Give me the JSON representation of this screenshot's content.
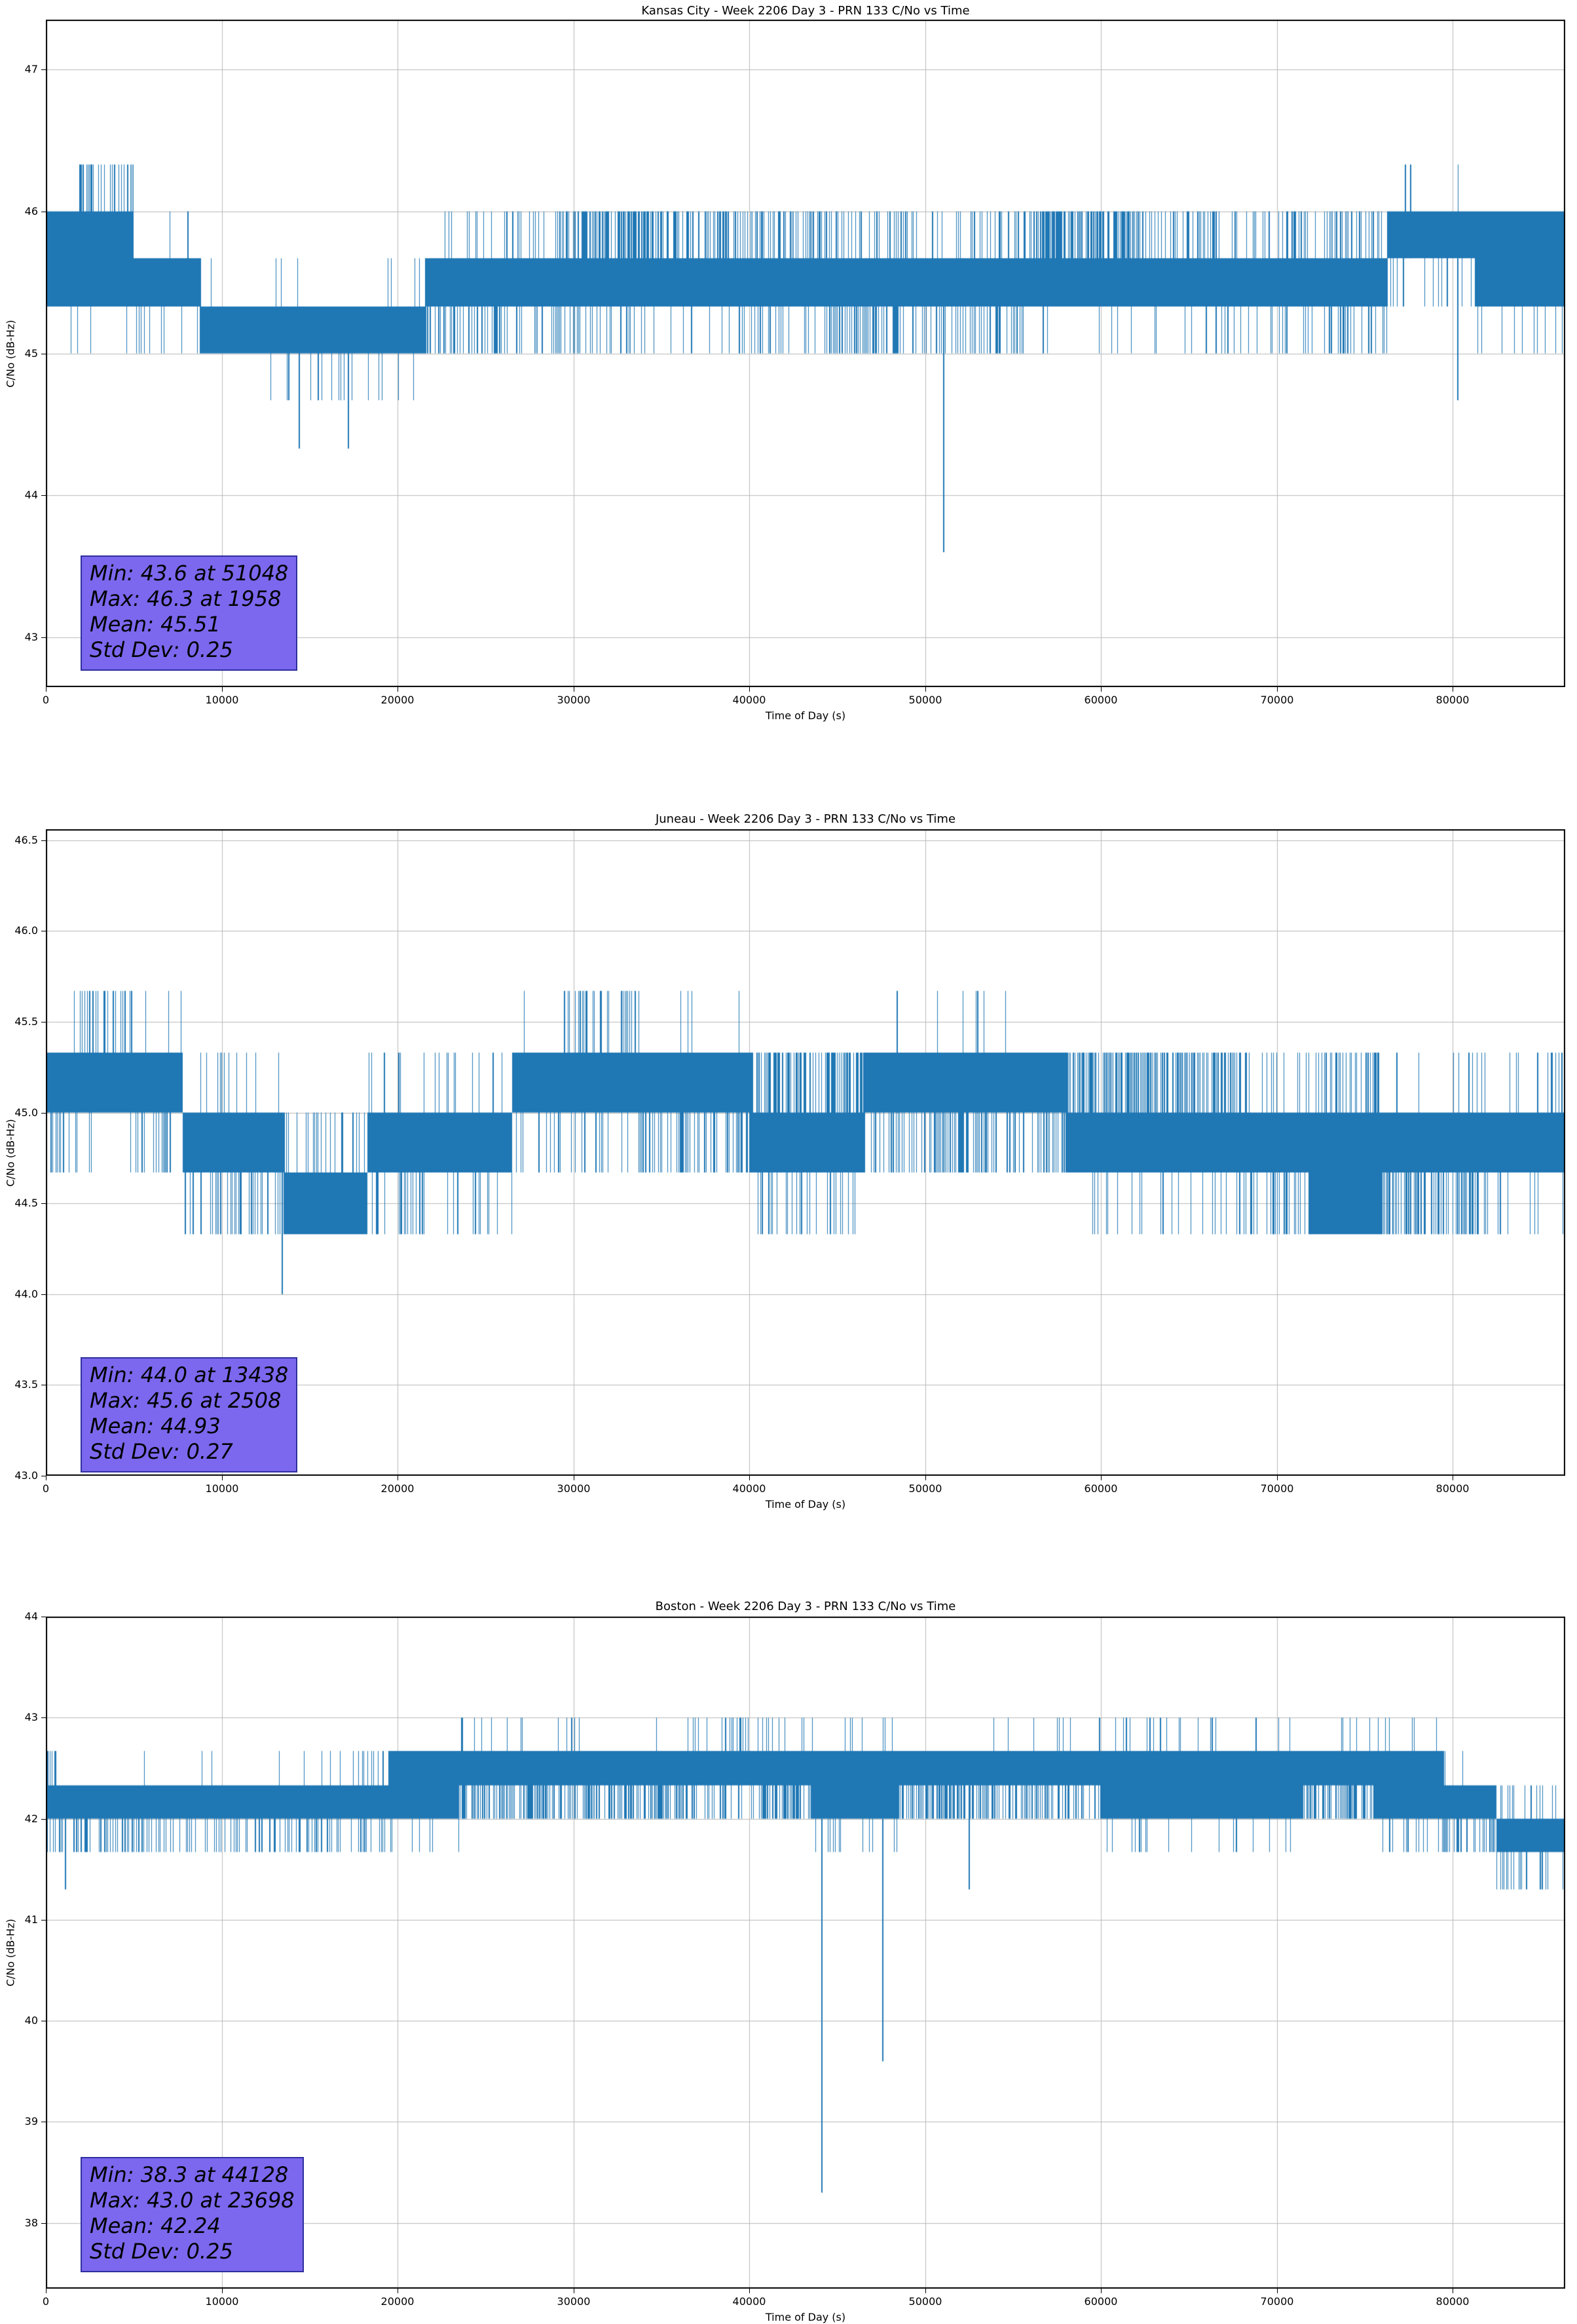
{
  "figure": {
    "background": "#ffffff",
    "line_color": "#1f77b4",
    "grid_color": "#b8b8b8",
    "spine_color": "#000000"
  },
  "segment_format": "[t_start, t_end, band_low_dbhz, band_high_dbhz, spike_high_dbhz, p_spike_high_per_column, spike_low_dbhz, p_spike_low_per_column]",
  "event_format": "[time_s, value_dbhz, attach_level_dbhz]",
  "chart_data": [
    {
      "type": "line",
      "station": "Kansas City",
      "title": "Kansas City - Week 2206 Day 3 - PRN 133 C/No vs Time",
      "xlabel": "Time of Day (s)",
      "ylabel": "C/No (dB-Hz)",
      "xlim": [
        0,
        86400
      ],
      "ylim": [
        42.65,
        47.35
      ],
      "xticks": [
        0,
        10000,
        20000,
        30000,
        40000,
        50000,
        60000,
        70000,
        80000
      ],
      "xtick_labels": [
        "0",
        "10000",
        "20000",
        "30000",
        "40000",
        "50000",
        "60000",
        "70000",
        "80000"
      ],
      "yticks": [
        43,
        44,
        45,
        46,
        47
      ],
      "ytick_labels": [
        "43",
        "44",
        "45",
        "46",
        "47"
      ],
      "grid": true,
      "quantization_step_db": 0.3333,
      "stats": {
        "min": 43.6,
        "min_t": 51048,
        "max": 46.3,
        "max_t": 1958,
        "mean": 45.51,
        "std": 0.25
      },
      "annotation": {
        "fill": "#7b68ee",
        "border": "#2e2e9e",
        "text_color": "#000000",
        "lines": [
          "Min: 43.6 at 51048",
          "Max: 46.3 at 1958",
          "Mean: 45.51",
          "Std Dev: 0.25"
        ]
      },
      "seed": 7,
      "series_summary": {
        "segments": [
          [
            0,
            1900,
            45.33,
            46.0,
            46.33,
            0.0,
            45.0,
            0.02
          ],
          [
            1900,
            5000,
            45.33,
            46.0,
            46.33,
            0.3,
            45.0,
            0.02
          ],
          [
            5000,
            8800,
            45.33,
            45.67,
            46.0,
            0.03,
            45.0,
            0.1
          ],
          [
            8800,
            13200,
            45.0,
            45.33,
            45.67,
            0.02,
            44.67,
            0.02
          ],
          [
            13200,
            19200,
            45.0,
            45.33,
            45.67,
            0.01,
            44.67,
            0.12
          ],
          [
            19200,
            21600,
            45.0,
            45.33,
            45.67,
            0.05,
            44.67,
            0.05
          ],
          [
            21600,
            26000,
            45.33,
            45.67,
            46.0,
            0.06,
            45.0,
            0.25
          ],
          [
            26000,
            30500,
            45.33,
            45.67,
            46.0,
            0.25,
            45.0,
            0.2
          ],
          [
            30500,
            34500,
            45.33,
            45.67,
            46.0,
            0.55,
            45.0,
            0.1
          ],
          [
            34500,
            40500,
            45.33,
            45.67,
            46.0,
            0.35,
            45.0,
            0.12
          ],
          [
            40500,
            44500,
            45.33,
            45.67,
            46.0,
            0.3,
            45.0,
            0.15
          ],
          [
            44500,
            48500,
            45.33,
            45.67,
            46.0,
            0.25,
            45.0,
            0.45
          ],
          [
            48500,
            56000,
            45.33,
            45.67,
            46.0,
            0.22,
            45.0,
            0.22
          ],
          [
            56000,
            62500,
            45.33,
            45.67,
            46.0,
            0.55,
            45.0,
            0.06
          ],
          [
            62500,
            67000,
            45.33,
            45.67,
            46.0,
            0.3,
            45.0,
            0.1
          ],
          [
            67000,
            70500,
            45.33,
            45.67,
            46.0,
            0.1,
            45.0,
            0.12
          ],
          [
            70500,
            76300,
            45.33,
            45.67,
            46.0,
            0.28,
            45.0,
            0.18
          ],
          [
            76300,
            81300,
            45.67,
            46.0,
            46.33,
            0.015,
            45.33,
            0.1
          ],
          [
            81300,
            86400,
            45.33,
            46.0,
            46.33,
            0.0,
            45.0,
            0.06
          ]
        ],
        "events": [
          [
            1958,
            46.33,
            45.33
          ],
          [
            14400,
            44.33,
            45.33
          ],
          [
            17200,
            44.33,
            45.33
          ],
          [
            51048,
            43.6,
            45.33
          ],
          [
            77300,
            46.33,
            45.67
          ],
          [
            77600,
            46.33,
            45.67
          ],
          [
            80300,
            44.67,
            45.67
          ]
        ]
      }
    },
    {
      "type": "line",
      "station": "Juneau",
      "title": "Juneau - Week 2206 Day 3 - PRN 133 C/No vs Time",
      "xlabel": "Time of Day (s)",
      "ylabel": "C/No (dB-Hz)",
      "xlim": [
        0,
        86400
      ],
      "ylim": [
        43.0,
        46.56
      ],
      "xticks": [
        0,
        10000,
        20000,
        30000,
        40000,
        50000,
        60000,
        70000,
        80000
      ],
      "xtick_labels": [
        "0",
        "10000",
        "20000",
        "30000",
        "40000",
        "50000",
        "60000",
        "70000",
        "80000"
      ],
      "yticks": [
        43.0,
        43.5,
        44.0,
        44.5,
        45.0,
        45.5,
        46.0,
        46.5
      ],
      "ytick_labels": [
        "43.0",
        "43.5",
        "44.0",
        "44.5",
        "45.0",
        "45.5",
        "46.0",
        "46.5"
      ],
      "grid": true,
      "quantization_step_db": 0.3333,
      "stats": {
        "min": 44.0,
        "min_t": 13438,
        "max": 45.6,
        "max_t": 2508,
        "mean": 44.93,
        "std": 0.27
      },
      "annotation": {
        "fill": "#7b68ee",
        "border": "#2e2e9e",
        "text_color": "#000000",
        "lines": [
          "Min: 44.0 at 13438",
          "Max: 45.6 at 2508",
          "Mean: 44.93",
          "Std Dev: 0.27"
        ]
      },
      "seed": 11,
      "series_summary": {
        "segments": [
          [
            0,
            1800,
            45.0,
            45.33,
            45.67,
            0.02,
            44.67,
            0.3
          ],
          [
            1800,
            5000,
            45.0,
            45.33,
            45.67,
            0.18,
            44.67,
            0.06
          ],
          [
            5000,
            7800,
            45.0,
            45.33,
            45.67,
            0.02,
            44.67,
            0.15
          ],
          [
            7800,
            10500,
            44.67,
            45.0,
            45.33,
            0.06,
            44.33,
            0.2
          ],
          [
            10500,
            13600,
            44.67,
            45.0,
            45.33,
            0.04,
            44.33,
            0.25
          ],
          [
            13600,
            15500,
            44.33,
            44.67,
            45.0,
            0.15,
            44.33,
            0.0
          ],
          [
            15500,
            18300,
            44.33,
            44.67,
            45.0,
            0.25,
            44.33,
            0.0
          ],
          [
            18300,
            21500,
            44.67,
            45.0,
            45.33,
            0.08,
            44.33,
            0.2
          ],
          [
            21500,
            26500,
            44.67,
            45.0,
            45.33,
            0.1,
            44.33,
            0.08
          ],
          [
            26500,
            29500,
            45.0,
            45.33,
            45.67,
            0.03,
            44.67,
            0.2
          ],
          [
            29500,
            33800,
            45.0,
            45.33,
            45.67,
            0.22,
            44.67,
            0.12
          ],
          [
            33800,
            36500,
            45.0,
            45.33,
            45.67,
            0.02,
            44.67,
            0.35
          ],
          [
            36500,
            40000,
            45.0,
            45.33,
            45.67,
            0.04,
            44.67,
            0.3
          ],
          [
            40000,
            46500,
            44.67,
            45.0,
            45.33,
            0.45,
            44.33,
            0.2
          ],
          [
            46500,
            50500,
            45.0,
            45.33,
            45.67,
            0.01,
            44.67,
            0.2
          ],
          [
            50500,
            53500,
            45.0,
            45.33,
            45.67,
            0.02,
            44.67,
            0.45
          ],
          [
            53500,
            58000,
            45.0,
            45.33,
            45.67,
            0.01,
            44.67,
            0.3
          ],
          [
            58000,
            67800,
            44.67,
            45.0,
            45.33,
            0.5,
            44.33,
            0.08
          ],
          [
            67800,
            71800,
            44.67,
            45.0,
            45.33,
            0.1,
            44.33,
            0.3
          ],
          [
            71800,
            76000,
            44.33,
            45.0,
            45.33,
            0.3,
            44.33,
            0.0
          ],
          [
            76000,
            81500,
            44.67,
            45.0,
            45.33,
            0.06,
            44.33,
            0.4
          ],
          [
            81500,
            86400,
            44.67,
            45.0,
            45.33,
            0.1,
            44.33,
            0.1
          ]
        ],
        "events": [
          [
            2508,
            45.67,
            45.0
          ],
          [
            13438,
            44.0,
            44.67
          ],
          [
            48400,
            45.67,
            45.0
          ],
          [
            53000,
            45.67,
            45.0
          ],
          [
            85600,
            45.33,
            44.67
          ],
          [
            86200,
            45.33,
            44.67
          ]
        ]
      }
    },
    {
      "type": "line",
      "station": "Boston",
      "title": "Boston - Week 2206 Day 3 - PRN 133 C/No vs Time",
      "xlabel": "Time of Day (s)",
      "ylabel": "C/No (dB-Hz)",
      "xlim": [
        0,
        86400
      ],
      "ylim": [
        37.35,
        44.0
      ],
      "xticks": [
        0,
        10000,
        20000,
        30000,
        40000,
        50000,
        60000,
        70000,
        80000
      ],
      "xtick_labels": [
        "0",
        "10000",
        "20000",
        "30000",
        "40000",
        "50000",
        "60000",
        "70000",
        "80000"
      ],
      "yticks": [
        38,
        39,
        40,
        41,
        42,
        43,
        44
      ],
      "ytick_labels": [
        "38",
        "39",
        "40",
        "41",
        "42",
        "43",
        "44"
      ],
      "grid": true,
      "quantization_step_db": 0.3333,
      "stats": {
        "min": 38.3,
        "min_t": 44128,
        "max": 43.0,
        "max_t": 23698,
        "mean": 42.24,
        "std": 0.25
      },
      "annotation": {
        "fill": "#7b68ee",
        "border": "#2e2e9e",
        "text_color": "#000000",
        "lines": [
          "Min: 38.3 at 44128",
          "Max: 43.0 at 23698",
          "Mean: 42.24",
          "Std Dev: 0.25"
        ]
      },
      "seed": 13,
      "series_summary": {
        "segments": [
          [
            0,
            600,
            42.0,
            42.33,
            42.67,
            0.3,
            41.67,
            0.2
          ],
          [
            600,
            4200,
            42.0,
            42.33,
            42.67,
            0.01,
            41.67,
            0.25
          ],
          [
            4200,
            8200,
            42.0,
            42.33,
            42.67,
            0.01,
            41.67,
            0.3
          ],
          [
            8200,
            10800,
            42.0,
            42.33,
            42.67,
            0.03,
            41.67,
            0.1
          ],
          [
            10800,
            14500,
            42.0,
            42.33,
            42.67,
            0.02,
            41.67,
            0.25
          ],
          [
            14500,
            19500,
            42.0,
            42.33,
            42.67,
            0.15,
            41.67,
            0.2
          ],
          [
            19500,
            23500,
            42.0,
            42.67,
            43.0,
            0.0,
            41.67,
            0.04
          ],
          [
            23500,
            30500,
            42.33,
            42.67,
            43.0,
            0.04,
            42.0,
            0.45
          ],
          [
            30500,
            36500,
            42.33,
            42.67,
            43.0,
            0.02,
            42.0,
            0.5
          ],
          [
            36500,
            41500,
            42.33,
            42.67,
            43.0,
            0.22,
            42.0,
            0.3
          ],
          [
            41500,
            43500,
            42.33,
            42.67,
            43.0,
            0.05,
            42.0,
            0.5
          ],
          [
            43500,
            48500,
            42.0,
            42.67,
            43.0,
            0.05,
            41.67,
            0.05
          ],
          [
            48500,
            54000,
            42.33,
            42.67,
            43.0,
            0.03,
            42.0,
            0.45
          ],
          [
            54000,
            60000,
            42.33,
            42.67,
            43.0,
            0.06,
            42.0,
            0.4
          ],
          [
            60000,
            67800,
            42.0,
            42.67,
            43.0,
            0.08,
            41.67,
            0.06
          ],
          [
            67800,
            71500,
            42.0,
            42.67,
            43.0,
            0.03,
            41.67,
            0.08
          ],
          [
            71500,
            75500,
            42.33,
            42.67,
            43.0,
            0.04,
            42.0,
            0.45
          ],
          [
            75500,
            79500,
            42.0,
            42.67,
            43.0,
            0.05,
            41.67,
            0.15
          ],
          [
            79500,
            82500,
            42.0,
            42.33,
            42.67,
            0.04,
            41.67,
            0.3
          ],
          [
            82500,
            86400,
            41.67,
            42.0,
            42.33,
            0.2,
            41.3,
            0.15
          ]
        ],
        "events": [
          [
            1100,
            41.3,
            42.0
          ],
          [
            23698,
            43.0,
            42.33
          ],
          [
            44128,
            38.3,
            42.0
          ],
          [
            47600,
            39.6,
            42.0
          ],
          [
            52500,
            41.3,
            42.33
          ],
          [
            62800,
            43.0,
            42.33
          ],
          [
            63400,
            43.0,
            42.33
          ]
        ]
      }
    }
  ]
}
